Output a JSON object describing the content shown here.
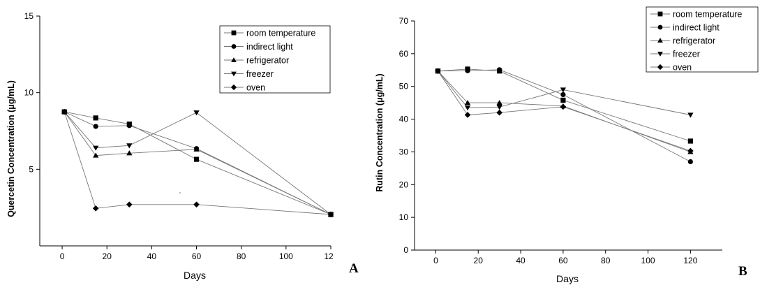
{
  "chart_data": [
    {
      "type": "line",
      "panel_label": "A",
      "title": "",
      "xlabel": "Days",
      "ylabel": "Quercetin Concentration (μg/mL)",
      "xlim": [
        -10,
        120
      ],
      "ylim": [
        0,
        15
      ],
      "x_ticks": [
        0,
        20,
        40,
        60,
        80,
        100
      ],
      "x_tick_labels": [
        "0",
        "20",
        "40",
        "60",
        "80",
        "100"
      ],
      "x_end_label": "12",
      "y_ticks": [
        5,
        10,
        15
      ],
      "grid": false,
      "legend_position": "top-right",
      "x": [
        1,
        15,
        30,
        60,
        120
      ],
      "series": [
        {
          "name": "room temperature",
          "marker": "square",
          "values": [
            8.75,
            8.35,
            7.95,
            5.65,
            2.05
          ]
        },
        {
          "name": "indirect light",
          "marker": "circle",
          "values": [
            8.75,
            7.8,
            7.85,
            6.35,
            2.05
          ]
        },
        {
          "name": "refrigerator",
          "marker": "triangle-up",
          "values": [
            8.75,
            5.9,
            6.05,
            6.3,
            2.05
          ]
        },
        {
          "name": "freezer",
          "marker": "triangle-down",
          "values": [
            8.75,
            6.4,
            6.55,
            8.7,
            2.05
          ]
        },
        {
          "name": "oven",
          "marker": "diamond",
          "values": [
            8.75,
            2.45,
            2.7,
            2.7,
            2.05
          ]
        }
      ]
    },
    {
      "type": "line",
      "panel_label": "B",
      "title": "",
      "xlabel": "Days",
      "ylabel": "Rutin Concentration (μg/mL)",
      "xlim": [
        -10,
        135
      ],
      "ylim": [
        0,
        70
      ],
      "x_ticks": [
        0,
        20,
        40,
        60,
        80,
        100,
        120
      ],
      "x_tick_labels": [
        "0",
        "20",
        "40",
        "60",
        "80",
        "100",
        "120"
      ],
      "y_ticks": [
        0,
        10,
        20,
        30,
        40,
        50,
        60,
        70
      ],
      "grid": false,
      "legend_position": "top-right",
      "x": [
        1,
        15,
        30,
        60,
        120
      ],
      "series": [
        {
          "name": "room temperature",
          "marker": "square",
          "values": [
            54.7,
            55.3,
            54.7,
            45.8,
            33.3
          ]
        },
        {
          "name": "indirect light",
          "marker": "circle",
          "values": [
            54.7,
            54.8,
            55.1,
            47.5,
            27.0
          ]
        },
        {
          "name": "refrigerator",
          "marker": "triangle-up",
          "values": [
            54.7,
            45.0,
            45.0,
            44.0,
            30.0
          ]
        },
        {
          "name": "freezer",
          "marker": "triangle-down",
          "values": [
            54.7,
            43.5,
            43.7,
            49.0,
            41.3
          ]
        },
        {
          "name": "oven",
          "marker": "diamond",
          "values": [
            54.7,
            41.3,
            42.0,
            43.8,
            30.3
          ]
        }
      ]
    }
  ]
}
